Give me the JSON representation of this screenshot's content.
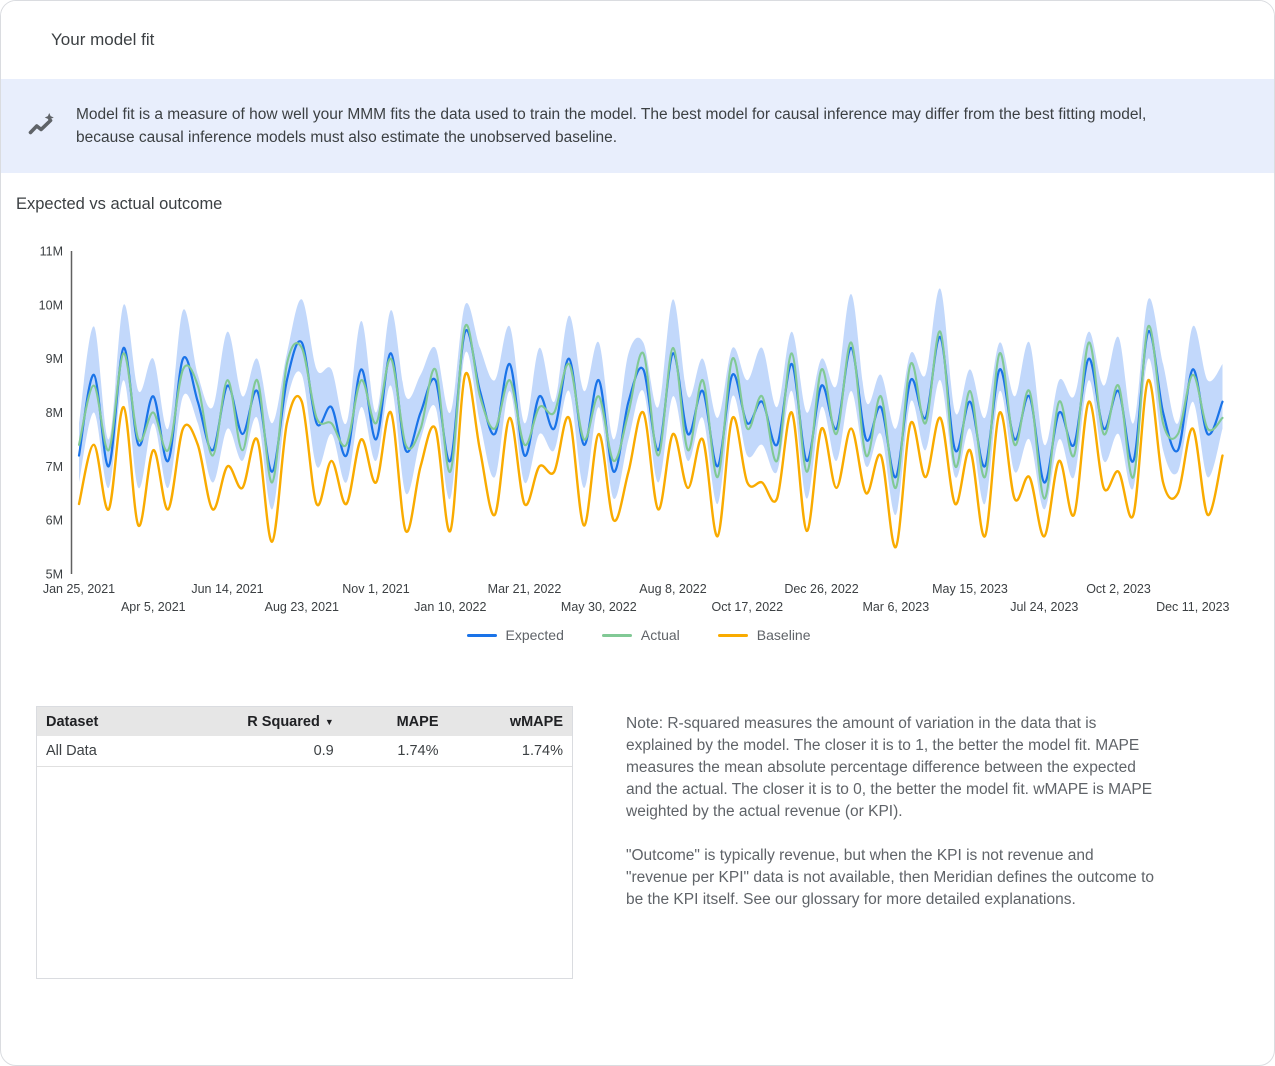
{
  "page": {
    "title": "Your model fit"
  },
  "banner": {
    "icon": "insights-icon",
    "text": "Model fit is a measure of how well your MMM fits the data used to train the model. The best model for causal inference may differ from the best fitting model, because causal inference models must also estimate the unobserved baseline."
  },
  "section": {
    "title": "Expected vs actual outcome"
  },
  "chart_data": {
    "type": "line",
    "title": "Expected vs actual outcome",
    "xlabel": "",
    "ylabel": "",
    "y_tick_labels": [
      "5M",
      "6M",
      "7M",
      "8M",
      "9M",
      "10M",
      "11M"
    ],
    "y_range_millions": [
      5,
      11
    ],
    "grid": false,
    "legend_position": "bottom",
    "x_tick_labels": [
      "Jan 25, 2021",
      "Apr 5, 2021",
      "Jun 14, 2021",
      "Aug 23, 2021",
      "Nov 1, 2021",
      "Jan 10, 2022",
      "Mar 21, 2022",
      "May 30, 2022",
      "Aug 8, 2022",
      "Oct 17, 2022",
      "Dec 26, 2022",
      "Mar 6, 2023",
      "May 15, 2023",
      "Jul 24, 2023",
      "Oct 2, 2023",
      "Dec 11, 2023"
    ],
    "samples_per_tick_interval": 5,
    "series": [
      {
        "name": "Expected",
        "color": "#1a73e8",
        "values": [
          7.2,
          8.7,
          7.0,
          9.2,
          7.4,
          8.3,
          7.1,
          9.0,
          8.2,
          7.3,
          8.5,
          7.6,
          8.4,
          6.9,
          8.6,
          9.3,
          7.8,
          8.1,
          7.2,
          8.8,
          7.5,
          9.1,
          7.3,
          8.0,
          8.6,
          7.1,
          9.5,
          8.4,
          7.6,
          8.9,
          7.2,
          8.3,
          7.7,
          9.0,
          7.4,
          8.6,
          6.9,
          8.2,
          8.8,
          7.3,
          9.1,
          7.6,
          8.4,
          7.0,
          8.7,
          7.8,
          8.2,
          7.4,
          8.9,
          7.1,
          8.5,
          7.7,
          9.2,
          7.5,
          8.1,
          6.8,
          8.6,
          7.9,
          9.4,
          7.3,
          8.2,
          7.0,
          8.8,
          7.5,
          8.3,
          6.7,
          8.0,
          7.4,
          9.0,
          7.7,
          8.4,
          7.1,
          9.5,
          8.0,
          7.3,
          8.8,
          7.6,
          8.2
        ]
      },
      {
        "name": "Actual",
        "color": "#81c995",
        "values": [
          7.4,
          8.5,
          7.3,
          9.1,
          7.5,
          8.0,
          7.3,
          8.8,
          8.5,
          7.2,
          8.6,
          7.3,
          8.6,
          6.7,
          8.9,
          9.2,
          7.9,
          7.8,
          7.4,
          8.6,
          7.8,
          9.0,
          7.4,
          7.7,
          8.8,
          6.9,
          9.6,
          8.3,
          7.7,
          8.6,
          7.4,
          8.1,
          8.0,
          8.9,
          7.5,
          8.3,
          7.1,
          8.0,
          9.1,
          7.2,
          9.2,
          7.3,
          8.6,
          6.8,
          9.0,
          7.7,
          8.3,
          7.1,
          9.1,
          6.9,
          8.8,
          7.6,
          9.3,
          7.2,
          8.3,
          6.6,
          8.9,
          7.8,
          9.5,
          7.0,
          8.4,
          6.8,
          9.1,
          7.4,
          8.4,
          6.4,
          8.2,
          7.2,
          9.3,
          7.6,
          8.5,
          6.8,
          9.6,
          7.8,
          7.6,
          8.7,
          7.7,
          7.9
        ]
      },
      {
        "name": "Baseline",
        "color": "#f9ab00",
        "values": [
          6.3,
          7.4,
          6.2,
          8.1,
          5.9,
          7.3,
          6.2,
          7.7,
          7.4,
          6.2,
          7.0,
          6.6,
          7.5,
          5.6,
          7.8,
          8.2,
          6.3,
          7.1,
          6.3,
          7.5,
          6.7,
          8.0,
          5.8,
          7.0,
          7.7,
          5.8,
          8.7,
          7.3,
          6.1,
          7.9,
          6.3,
          7.0,
          6.9,
          7.9,
          5.9,
          7.6,
          6.0,
          6.9,
          8.0,
          6.2,
          7.6,
          6.6,
          7.5,
          5.7,
          7.9,
          6.7,
          6.7,
          6.4,
          8.0,
          5.8,
          7.7,
          6.6,
          7.7,
          6.5,
          7.2,
          5.5,
          7.8,
          6.8,
          7.9,
          6.3,
          7.3,
          5.7,
          8.0,
          6.4,
          6.8,
          5.7,
          7.1,
          6.1,
          8.2,
          6.6,
          6.9,
          6.1,
          8.6,
          6.7,
          6.5,
          7.7,
          6.1,
          7.2
        ]
      }
    ],
    "band": {
      "name": "Expected credible interval",
      "color": "#4285f4",
      "opacity": 0.32,
      "upper": [
        7.8,
        9.6,
        7.5,
        10.0,
        8.4,
        9.0,
        7.7,
        9.9,
        8.7,
        8.1,
        9.5,
        8.3,
        9.0,
        7.8,
        9.1,
        10.1,
        8.8,
        8.8,
        7.8,
        9.7,
        8.0,
        9.9,
        8.3,
        8.7,
        9.2,
        8.0,
        10.0,
        9.2,
        8.6,
        9.6,
        7.8,
        9.2,
        8.2,
        9.8,
        8.4,
        9.3,
        7.5,
        9.1,
        9.3,
        8.1,
        10.1,
        8.3,
        9.0,
        7.9,
        9.2,
        8.6,
        9.2,
        8.1,
        9.5,
        8.0,
        9.0,
        8.5,
        10.2,
        8.2,
        8.7,
        7.7,
        9.1,
        8.7,
        10.3,
        8.0,
        8.8,
        7.9,
        9.3,
        8.3,
        9.3,
        7.4,
        8.6,
        8.3,
        9.5,
        8.5,
        9.4,
        7.8,
        10.1,
        8.9,
        7.8,
        9.6,
        8.6,
        8.9
      ],
      "lower": [
        6.7,
        8.0,
        6.6,
        8.6,
        6.6,
        7.8,
        6.6,
        8.3,
        7.8,
        6.7,
        7.7,
        7.1,
        7.9,
        6.2,
        8.2,
        8.7,
        7.0,
        7.6,
        6.7,
        8.1,
        7.1,
        8.5,
        6.5,
        7.5,
        8.1,
        6.4,
        9.1,
        7.8,
        6.8,
        8.4,
        6.7,
        7.6,
        7.3,
        8.4,
        6.6,
        8.1,
        6.4,
        7.5,
        8.4,
        6.7,
        8.3,
        7.1,
        7.9,
        6.3,
        8.3,
        7.2,
        7.4,
        6.9,
        8.4,
        6.4,
        8.1,
        7.1,
        8.4,
        7.0,
        7.6,
        6.1,
        8.2,
        7.3,
        8.6,
        6.8,
        7.7,
        6.3,
        8.4,
        6.9,
        7.5,
        6.2,
        7.5,
        6.8,
        8.6,
        7.1,
        7.6,
        6.6,
        9.0,
        7.3,
        6.9,
        8.2,
        6.8,
        7.7
      ]
    }
  },
  "table": {
    "columns": [
      "Dataset",
      "R Squared",
      "MAPE",
      "wMAPE"
    ],
    "sort_indicator": "▼",
    "sorted_by": "R Squared",
    "rows": [
      {
        "dataset": "All Data",
        "r_squared": "0.9",
        "mape": "1.74%",
        "wmape": "1.74%"
      }
    ]
  },
  "note": {
    "paragraph1": "Note: R-squared measures the amount of variation in the data that is explained by the model. The closer it is to 1, the better the model fit. MAPE measures the mean absolute percentage difference between the expected and the actual. The closer it is to 0, the better the model fit. wMAPE is MAPE weighted by the actual revenue (or KPI).",
    "paragraph2": "\"Outcome\" is typically revenue, but when the KPI is not revenue and \"revenue per KPI\" data is not available, then Meridian defines the outcome to be the KPI itself. See our glossary for more detailed explanations."
  }
}
